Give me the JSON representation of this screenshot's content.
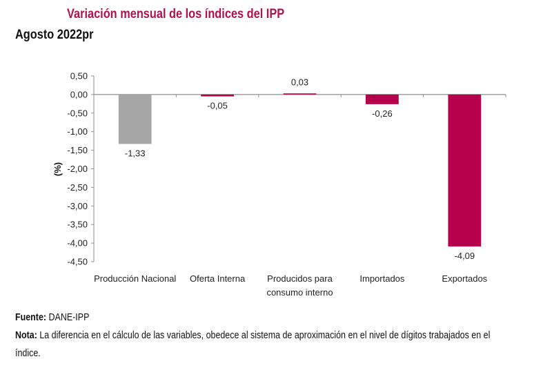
{
  "header": {
    "title": "Variación mensual de los índices del IPP",
    "subtitle": "Agosto 2022pr"
  },
  "footer": {
    "source_label": "Fuente:",
    "source_value": "DANE-IPP",
    "note_label": "Nota:",
    "note_line1": "La diferencia en el cálculo de las variables, obedece al sistema de aproximación en el nivel de dígitos trabajados en el",
    "note_line2": "índice."
  },
  "colors": {
    "accent": "#b0124e",
    "bar_gray": "#a6a6a6",
    "bar_magenta": "#b5004b",
    "axis": "#8c8c8c"
  },
  "chart_data": {
    "type": "bar",
    "title": "Variación mensual de los índices del IPP",
    "subtitle": "Agosto 2022pr",
    "xlabel": "",
    "ylabel": "(%)",
    "ylim": [
      -4.5,
      0.5
    ],
    "yticks": [
      0.5,
      0.0,
      -0.5,
      -1.0,
      -1.5,
      -2.0,
      -2.5,
      -3.0,
      -3.5,
      -4.0,
      -4.5
    ],
    "ytick_labels": [
      "0,50",
      "0,00",
      "-0,50",
      "-1,00",
      "-1,50",
      "-2,00",
      "-2,50",
      "-3,00",
      "-3,50",
      "-4,00",
      "-4,50"
    ],
    "grid": false,
    "legend": "none",
    "categories": [
      [
        "Producción Nacional"
      ],
      [
        "Oferta Interna"
      ],
      [
        "Producidos para",
        "consumo interno"
      ],
      [
        "Importados"
      ],
      [
        "Exportados"
      ]
    ],
    "values": [
      -1.33,
      -0.05,
      0.03,
      -0.26,
      -4.09
    ],
    "value_labels": [
      "-1,33",
      "-0,05",
      "0,03",
      "-0,26",
      "-4,09"
    ],
    "bar_colors": [
      "#a6a6a6",
      "#b5004b",
      "#b5004b",
      "#b5004b",
      "#b5004b"
    ]
  }
}
